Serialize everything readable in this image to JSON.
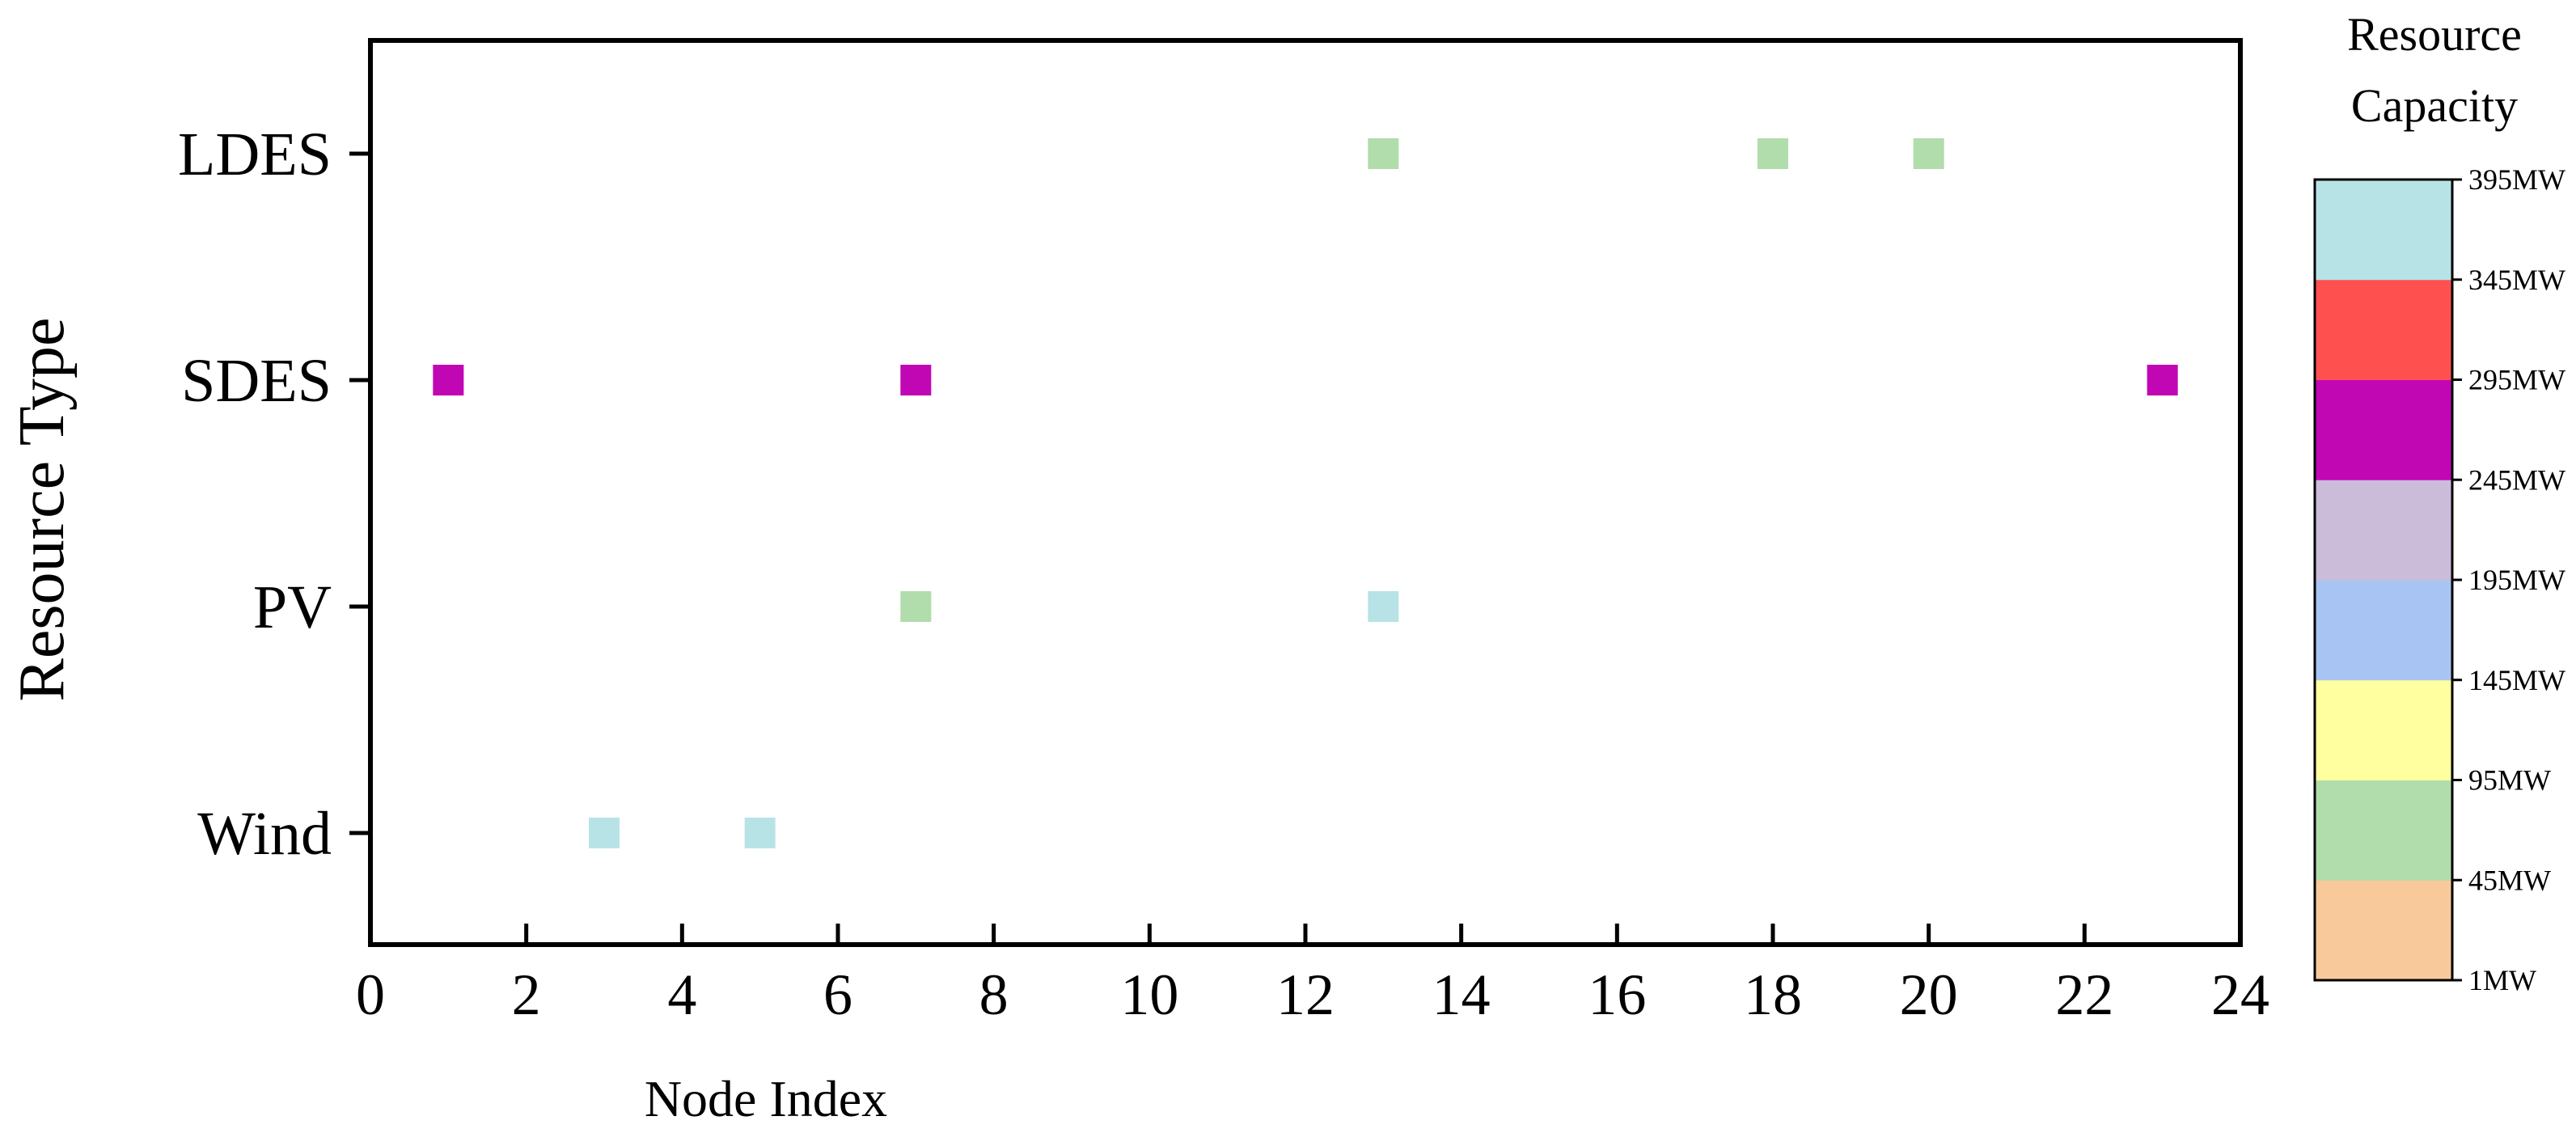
{
  "chart_data": {
    "type": "scatter",
    "xlabel": "Node Index",
    "ylabel": "Resource Type",
    "xlim": [
      0,
      24
    ],
    "x_ticks": [
      0,
      2,
      4,
      6,
      8,
      10,
      12,
      14,
      16,
      18,
      20,
      22,
      24
    ],
    "categories": [
      "LDES",
      "SDES",
      "PV",
      "Wind"
    ],
    "points": [
      {
        "category": "LDES",
        "x": 13,
        "capacity_band": "45MW-95MW"
      },
      {
        "category": "LDES",
        "x": 18,
        "capacity_band": "45MW-95MW"
      },
      {
        "category": "LDES",
        "x": 20,
        "capacity_band": "45MW-95MW"
      },
      {
        "category": "SDES",
        "x": 1,
        "capacity_band": "245MW-295MW"
      },
      {
        "category": "SDES",
        "x": 7,
        "capacity_band": "245MW-295MW"
      },
      {
        "category": "SDES",
        "x": 23,
        "capacity_band": "245MW-295MW"
      },
      {
        "category": "PV",
        "x": 7,
        "capacity_band": "45MW-95MW"
      },
      {
        "category": "PV",
        "x": 13,
        "capacity_band": "345MW-395MW"
      },
      {
        "category": "Wind",
        "x": 3,
        "capacity_band": "345MW-395MW"
      },
      {
        "category": "Wind",
        "x": 5,
        "capacity_band": "345MW-395MW"
      }
    ],
    "colorbar": {
      "title_lines": [
        "Resource",
        "Capacity"
      ],
      "labels": [
        "1MW",
        "45MW",
        "95MW",
        "145MW",
        "195MW",
        "245MW",
        "295MW",
        "345MW",
        "395MW"
      ],
      "bands": [
        {
          "range": "1MW-45MW",
          "color": "#f8c99b"
        },
        {
          "range": "45MW-95MW",
          "color": "#b1dcab"
        },
        {
          "range": "95MW-145MW",
          "color": "#ffff9f"
        },
        {
          "range": "145MW-195MW",
          "color": "#a8c4f2"
        },
        {
          "range": "195MW-245MW",
          "color": "#cbbcda"
        },
        {
          "range": "245MW-295MW",
          "color": "#c106b4"
        },
        {
          "range": "295MW-345MW",
          "color": "#ff5050"
        },
        {
          "range": "345MW-395MW",
          "color": "#b7e3e7"
        }
      ]
    }
  }
}
